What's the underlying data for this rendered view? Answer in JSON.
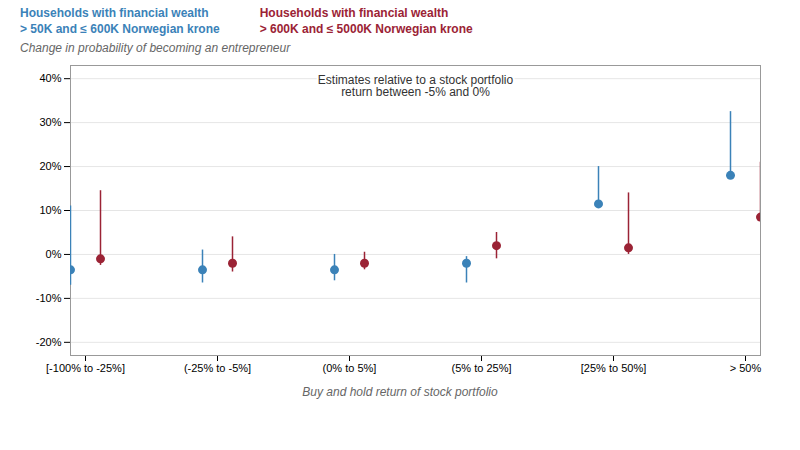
{
  "chart_data": {
    "type": "errorbar",
    "ylabel": "Change in probability of becoming an entrepreneur",
    "xlabel": "Buy and hold return of stock portfolio",
    "annotation": "Estimates relative to a stock portfolio\nreturn between -5% and 0%",
    "categories": [
      "[-100% to -25%]",
      "(-25% to -5%]",
      "(0% to 5%]",
      "(5% to 25%]",
      "[25% to 50%]",
      "> 50%"
    ],
    "series": [
      {
        "name": "Households with financial wealth\n> 50K and ≤ 600K Norwegian krone",
        "color": "#3b82b8",
        "values": [
          -3.5,
          -3.5,
          -3.5,
          -2.0,
          11.5,
          18.0
        ],
        "error_low": [
          3.5,
          3.0,
          2.5,
          4.5,
          0.5,
          0.5
        ],
        "error_high": [
          14.5,
          4.5,
          3.5,
          1.5,
          8.5,
          14.5
        ]
      },
      {
        "name": "Households with financial wealth\n> 600K and ≤ 5000K Norwegian krone",
        "color": "#9b2335",
        "values": [
          -1.0,
          -2.0,
          -2.0,
          2.0,
          1.5,
          8.5
        ],
        "error_low": [
          1.5,
          2.0,
          1.5,
          3.0,
          1.5,
          0.5
        ],
        "error_high": [
          15.5,
          6.0,
          2.5,
          3.0,
          12.5,
          12.5
        ]
      }
    ],
    "ylim": [
      -23,
      43
    ],
    "yticks": [
      {
        "value": -20,
        "label": "-20%"
      },
      {
        "value": -10,
        "label": "-10%"
      },
      {
        "value": 0,
        "label": "0%"
      },
      {
        "value": 10,
        "label": "10%"
      },
      {
        "value": 20,
        "label": "20%"
      },
      {
        "value": 30,
        "label": "30%"
      },
      {
        "value": 40,
        "label": "40%"
      }
    ],
    "grid": true
  }
}
